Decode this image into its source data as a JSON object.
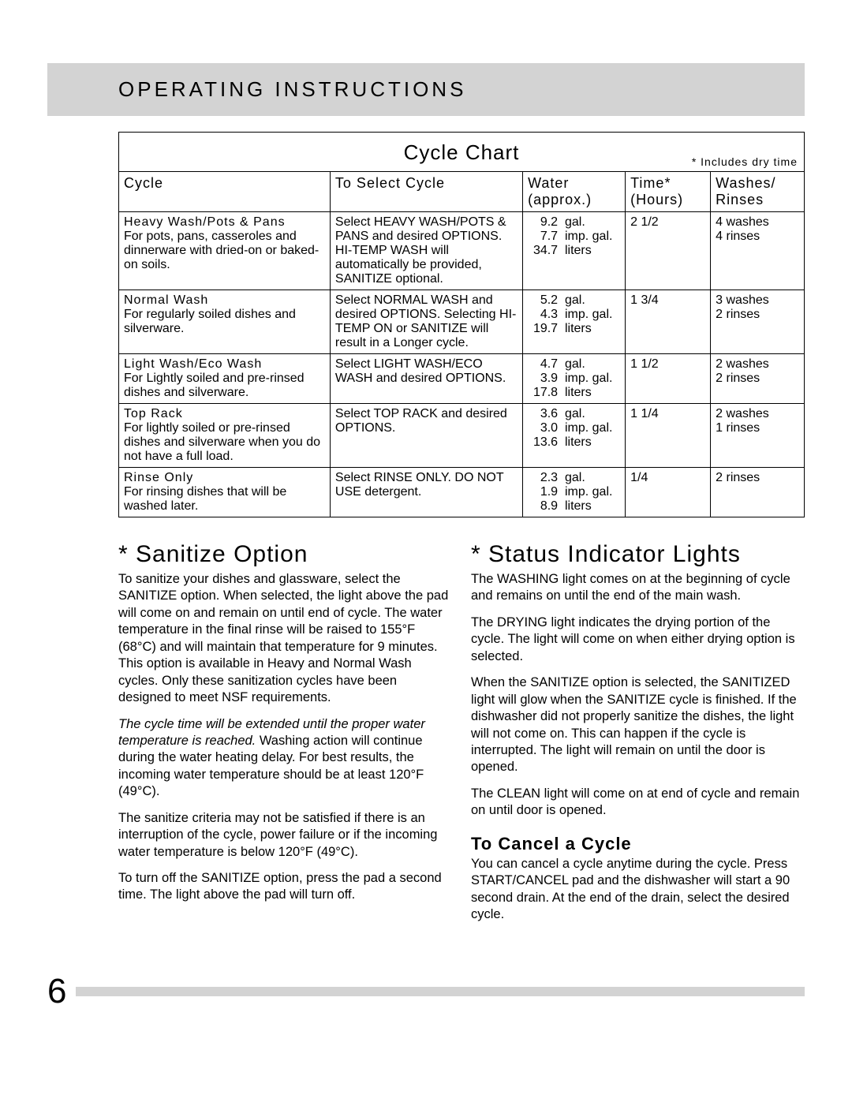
{
  "header": "OPERATING INSTRUCTIONS",
  "chart": {
    "title": "Cycle Chart",
    "footnote": "* Includes dry time",
    "columns": {
      "cycle": "Cycle",
      "select": "To Select Cycle",
      "water1": "Water",
      "water2": "(approx.)",
      "time1": "Time*",
      "time2": "(Hours)",
      "wash1": "Washes/",
      "wash2": "Rinses"
    },
    "rows": [
      {
        "name": "Heavy Wash/Pots & Pans",
        "desc": "For pots, pans, casseroles and dinnerware with dried-on or baked-on soils.",
        "select": "Select HEAVY WASH/POTS & PANS and desired OPTIONS. HI-TEMP WASH will automatically be provided, SANITIZE optional.",
        "w_gal": "9.2",
        "w_imp": "7.7",
        "w_lit": "34.7",
        "time": "2 1/2",
        "wash": "4 washes\n4 rinses"
      },
      {
        "name": "Normal Wash",
        "desc": "For regularly soiled dishes and silverware.",
        "select": "Select NORMAL WASH and desired OPTIONS. Selecting HI-TEMP ON or SANITIZE will result in a Longer cycle.",
        "w_gal": "5.2",
        "w_imp": "4.3",
        "w_lit": "19.7",
        "time": "1 3/4",
        "wash": "3 washes\n2 rinses"
      },
      {
        "name": "Light Wash/Eco Wash",
        "desc": "For Lightly soiled and pre-rinsed dishes and silverware.",
        "select": "Select LIGHT WASH/ECO WASH and desired OPTIONS.",
        "w_gal": "4.7",
        "w_imp": "3.9",
        "w_lit": "17.8",
        "time": "1 1/2",
        "wash": "2 washes\n2 rinses"
      },
      {
        "name": "Top Rack",
        "desc": "For lightly soiled or pre-rinsed dishes and silverware when you do not have a full load.",
        "select": "Select TOP RACK and desired OPTIONS.",
        "w_gal": "3.6",
        "w_imp": "3.0",
        "w_lit": "13.6",
        "time": "1 1/4",
        "wash": "2 washes\n1 rinses"
      },
      {
        "name": "Rinse Only",
        "desc": "For rinsing dishes that will be washed later.",
        "select": "Select RINSE ONLY. DO NOT USE detergent.",
        "w_gal": "2.3",
        "w_imp": "1.9",
        "w_lit": "8.9",
        "time": "1/4",
        "wash": "2 rinses"
      }
    ],
    "units": {
      "gal": "gal.",
      "imp": "imp. gal.",
      "lit": "liters"
    }
  },
  "sanitize": {
    "title": "* Sanitize Option",
    "p1": "To sanitize your dishes and glassware, select the SANITIZE option. When selected, the light above the pad will come on and remain on until end of cycle. The water temperature in the final rinse will be raised to 155°F (68°C) and will maintain that temperature for 9 minutes. This option is available in Heavy and Normal Wash cycles. Only these sanitization cycles have been designed to meet NSF requirements.",
    "p2_ital": "The cycle time will be extended until the proper water temperature is reached.",
    "p2_rest": " Washing action will continue during the water heating delay. For best results, the incoming water temperature should be at least 120°F (49°C).",
    "p3": "The sanitize criteria may not be satisfied if there is an interruption of the cycle, power failure or if the incoming water temperature is below 120°F (49°C).",
    "p4": "To turn off the SANITIZE option, press the pad a second time. The light above the pad will turn off."
  },
  "status": {
    "title": "* Status Indicator Lights",
    "p1": "The WASHING light comes on at the beginning of cycle and remains on until the end of the main wash.",
    "p2": "The DRYING light indicates the drying portion of the cycle. The light will come on when either drying option is selected.",
    "p3": "When the SANITIZE option is selected, the SANITIZED light will glow when the SANITIZE cycle is finished. If the dishwasher did not properly sanitize the dishes, the light will not come on. This can happen if the cycle is interrupted. The light will remain on until the door is opened.",
    "p4": "The CLEAN light will come on at end of cycle and remain on until door is opened."
  },
  "cancel": {
    "title": "To Cancel a Cycle",
    "p1": "You can cancel a cycle anytime during the cycle. Press START/CANCEL pad and the dishwasher will start a 90 second drain. At the end of the drain, select the desired cycle."
  },
  "page_number": "6"
}
